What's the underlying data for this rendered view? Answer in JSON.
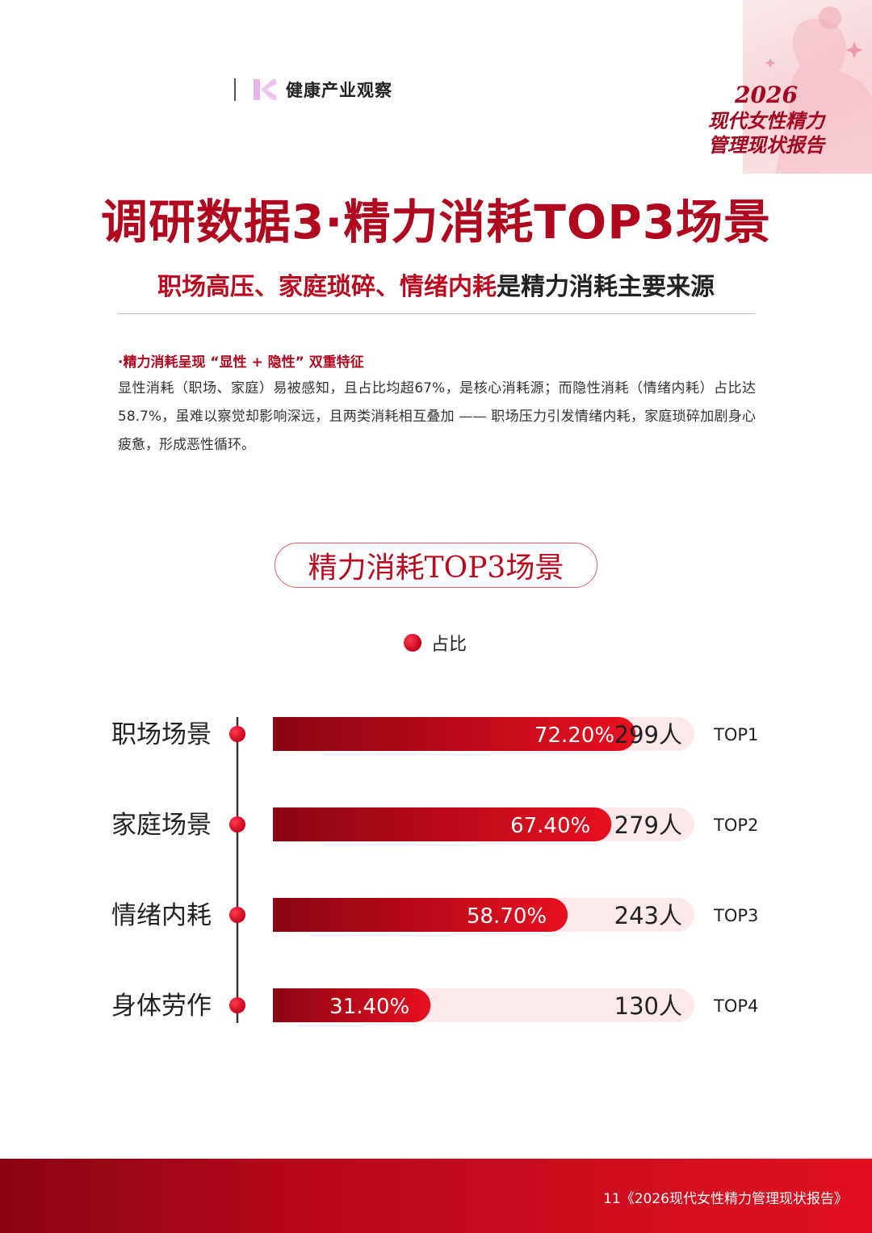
{
  "header": {
    "brand_name": "健康产业观察",
    "report_tag": {
      "year": "2026",
      "line1": "现代女性精力",
      "line2": "管理现状报告"
    }
  },
  "title": "调研数据3·精力消耗TOP3场景",
  "subtitle": {
    "highlight": "职场高压、家庭琐碎、情绪内耗",
    "rest": "是精力消耗主要来源"
  },
  "bullet": {
    "heading": "·精力消耗呈现 “显性 + 隐性” 双重特征",
    "body": "显性消耗（职场、家庭）易被感知，且占比均超67%，是核心消耗源；而隐性消耗（情绪内耗）占比达 58.7%，虽难以察觉却影响深远，且两类消耗相互叠加 —— 职场压力引发情绪内耗，家庭琐碎加剧身心疲惫，形成恶性循环。"
  },
  "chart_title": "精力消耗TOP3场景",
  "legend_label": "占比",
  "chart_data": {
    "type": "bar",
    "orientation": "horizontal",
    "legend": [
      "占比"
    ],
    "categories": [
      "职场场景",
      "家庭场景",
      "情绪内耗",
      "身体劳作"
    ],
    "values": [
      72.2,
      67.4,
      58.7,
      31.4
    ],
    "value_labels": [
      "72.20%",
      "67.40%",
      "58.70%",
      "31.40%"
    ],
    "counts": [
      "299人",
      "279人",
      "243人",
      "130人"
    ],
    "ranks": [
      "TOP1",
      "TOP2",
      "TOP3",
      "TOP4"
    ],
    "xlim": [
      0,
      100
    ]
  },
  "colors": {
    "primary": "#b0081f",
    "bar_dark": "#8a0413",
    "bar_bright": "#e8101f",
    "track": "#fde9ec"
  },
  "footer": {
    "text": "11《2026现代女性精力管理现状报告》"
  }
}
